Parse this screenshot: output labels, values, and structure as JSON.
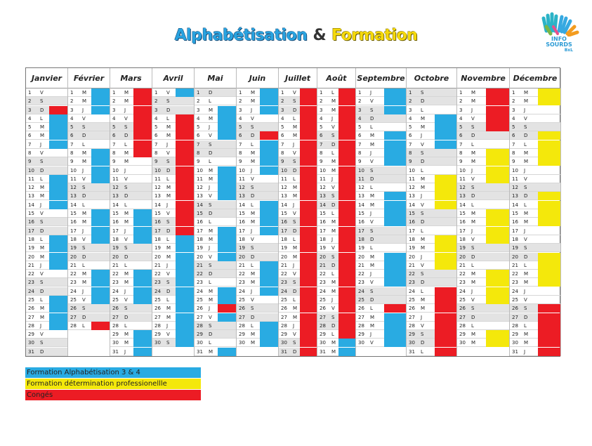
{
  "title": {
    "part1": "Alphabétisation",
    "amp": "&",
    "part2": "Formation"
  },
  "logo": {
    "line1": "INFO",
    "line2": "SOURDS",
    "line3": "BxL"
  },
  "colors": {
    "blue": "#29abe2",
    "yellow": "#f4e80b",
    "red": "#ec1c24",
    "weekend": "#e3e3e3",
    "white": "#ffffff"
  },
  "months": [
    {
      "name": "Janvier",
      "days": 31,
      "start": "V",
      "marks": {
        "blue": [
          4,
          5,
          6,
          7,
          11,
          12,
          13,
          14,
          18,
          19,
          20,
          21,
          25,
          26,
          27,
          28
        ],
        "red": [
          3
        ]
      }
    },
    {
      "name": "Février",
      "days": 28,
      "start": "M",
      "marks": {
        "blue": [
          1,
          2,
          3,
          8,
          9,
          10,
          11,
          15,
          16,
          17,
          18,
          22,
          23,
          24,
          25
        ],
        "red": [
          28
        ]
      }
    },
    {
      "name": "Mars",
      "days": 31,
      "start": "M",
      "marks": {
        "red": [
          1,
          2,
          3,
          4,
          5,
          6,
          7,
          8
        ],
        "blue": [
          15,
          16,
          17,
          18,
          22,
          23,
          24,
          25,
          29,
          30,
          31
        ]
      }
    },
    {
      "name": "Avril",
      "days": 30,
      "start": "V",
      "marks": {
        "blue": [
          1,
          18,
          19,
          20,
          21,
          22,
          23,
          24,
          25,
          26,
          27,
          28,
          29,
          30
        ],
        "red": [
          4,
          5,
          6,
          7,
          8,
          9,
          10,
          11,
          12,
          13,
          14,
          15,
          16,
          17
        ]
      }
    },
    {
      "name": "Mai",
      "days": 31,
      "start": "D",
      "marks": {
        "blue": [
          3,
          4,
          5,
          6,
          10,
          11,
          12,
          13,
          17,
          18,
          19,
          20,
          24,
          25,
          27,
          31
        ],
        "red": [
          26
        ]
      }
    },
    {
      "name": "Juin",
      "days": 30,
      "start": "M",
      "marks": {
        "blue": [
          1,
          2,
          3,
          7,
          8,
          9,
          10,
          14,
          15,
          16,
          17,
          21,
          22,
          23,
          24,
          28,
          29,
          30
        ],
        "red": [
          6
        ]
      }
    },
    {
      "name": "Juillet",
      "days": 31,
      "start": "V",
      "marks": {
        "red": [
          1,
          2,
          3,
          4,
          5,
          6,
          7,
          8,
          9,
          10,
          11,
          12,
          13,
          14,
          15,
          16,
          17,
          18,
          19,
          20,
          21,
          22,
          23,
          24,
          25,
          26,
          27,
          28,
          29,
          30,
          31
        ]
      }
    },
    {
      "name": "Août",
      "days": 31,
      "start": "L",
      "marks": {
        "red": [
          1,
          2,
          3,
          4,
          5,
          6,
          7,
          8,
          9,
          10,
          11,
          12,
          13,
          14,
          15,
          16,
          17,
          18,
          19,
          20,
          21,
          22,
          23,
          24,
          25,
          26,
          27,
          28,
          29,
          30,
          31
        ],
        "blue": [
          30,
          31
        ]
      }
    },
    {
      "name": "Septembre",
      "days": 30,
      "start": "J",
      "marks": {
        "blue": [
          1,
          2,
          3,
          6,
          7,
          8,
          9,
          13,
          14,
          15,
          16,
          20,
          21,
          22,
          23,
          27,
          28,
          29,
          30
        ],
        "red": [
          26
        ]
      }
    },
    {
      "name": "Octobre",
      "days": 31,
      "start": "S",
      "marks": {
        "blue": [
          4,
          5,
          6,
          7
        ],
        "yellow": [
          11,
          12,
          13,
          14,
          18,
          19,
          20,
          21
        ],
        "red": [
          24,
          25,
          26,
          27,
          28,
          29,
          30,
          31
        ]
      }
    },
    {
      "name": "Novembre",
      "days": 30,
      "start": "M",
      "marks": {
        "red": [
          1,
          2,
          3,
          4,
          5
        ],
        "yellow": [
          8,
          9,
          10,
          11,
          15,
          16,
          17,
          18,
          22,
          23,
          24,
          25,
          29,
          30
        ]
      }
    },
    {
      "name": "Décembre",
      "days": 31,
      "start": "M",
      "marks": {
        "yellow": [
          1,
          2,
          6,
          7,
          8,
          9,
          13,
          14,
          15,
          16,
          20,
          21,
          22,
          23
        ],
        "red": [
          26,
          27,
          28,
          29,
          30,
          31
        ]
      }
    }
  ],
  "legend": [
    {
      "label": "Formation Alphabétisation 3 & 4",
      "color": "#29abe2"
    },
    {
      "label": "Formation détermination professionellle",
      "color": "#f4e80b"
    },
    {
      "label": "Congés",
      "color": "#ec1c24"
    }
  ]
}
